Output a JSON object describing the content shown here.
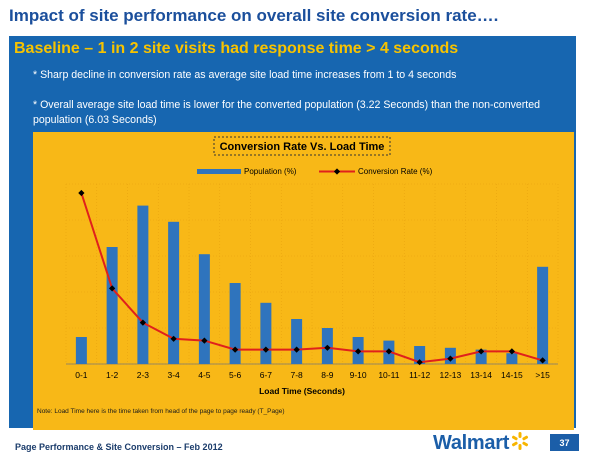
{
  "slide": {
    "title": "Impact of site performance on overall site conversion rate….",
    "subtitle": "Baseline – 1 in 2 site visits had response time > 4 seconds",
    "bullets": [
      "* Sharp decline in conversion rate as average site load time increases from 1 to 4 seconds",
      "* Overall average site load time is lower for the converted population (3.22 Seconds) than the non-converted population (6.03 Seconds)"
    ],
    "footer": "Page Performance & Site Conversion – Feb 2012",
    "logo_text": "Walmart",
    "page_number": "37"
  },
  "colors": {
    "title": "#1b4f9c",
    "panel": "#1766b0",
    "subtitle": "#f7c300",
    "chart_bg": "#f8b817",
    "bar": "#2f74bd",
    "line": "#e0201c",
    "marker": "#000000",
    "spark": "#f7b500"
  },
  "chart_data": {
    "type": "bar",
    "title": "Conversion Rate Vs. Load Time",
    "xlabel": "Load Time (Seconds)",
    "ylabel": "",
    "note": "Note: Load Time here is the time taken from head of the page to page ready (T_Page)",
    "categories": [
      "0-1",
      "1-2",
      "2-3",
      "3-4",
      "4-5",
      "5-6",
      "6-7",
      "7-8",
      "8-9",
      "9-10",
      "10-11",
      "11-12",
      "12-13",
      "13-14",
      "14-15",
      ">15"
    ],
    "grid": true,
    "legend_position": "top",
    "ylim": [
      0,
      100
    ],
    "series": [
      {
        "name": "Population (%)",
        "type": "bar",
        "values": [
          15,
          65,
          88,
          79,
          61,
          45,
          34,
          25,
          20,
          15,
          13,
          10,
          9,
          8,
          6,
          54
        ]
      },
      {
        "name": "Conversion Rate (%)",
        "type": "line",
        "values": [
          95,
          42,
          23,
          14,
          13,
          8,
          8,
          8,
          9,
          7,
          7,
          1,
          3,
          7,
          7,
          2
        ]
      }
    ]
  }
}
